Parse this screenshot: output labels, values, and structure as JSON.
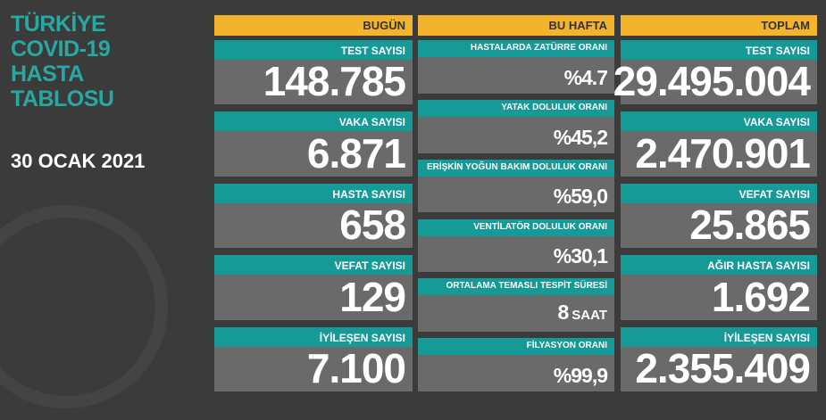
{
  "title": [
    "TÜRKİYE",
    "COVID-19",
    "HASTA",
    "TABLOSU"
  ],
  "date": "30 OCAK 2021",
  "columns": [
    {
      "header": "BUGÜN",
      "items": [
        {
          "label": "TEST SAYISI",
          "value": "148.785"
        },
        {
          "label": "VAKA SAYISI",
          "value": "6.871"
        },
        {
          "label": "HASTA SAYISI",
          "value": "658"
        },
        {
          "label": "VEFAT SAYISI",
          "value": "129"
        },
        {
          "label": "İYİLEŞEN SAYISI",
          "value": "7.100"
        }
      ]
    },
    {
      "header": "BU HAFTA",
      "items": [
        {
          "label": "HASTALARDA ZATÜRRE ORANI",
          "value": "%4.7"
        },
        {
          "label": "YATAK DOLULUK ORANI",
          "value": "%45,2"
        },
        {
          "label": "ERİŞKİN YOĞUN BAKIM DOLULUK ORANI",
          "value": "%59,0"
        },
        {
          "label": "VENTİLATÖR DOLULUK ORANI",
          "value": "%30,1"
        },
        {
          "label": "ORTALAMA TEMASLI TESPİT SÜRESİ",
          "value": "8",
          "unit": "SAAT"
        },
        {
          "label": "FİLYASYON ORANI",
          "value": "%99,9"
        }
      ]
    },
    {
      "header": "TOPLAM",
      "items": [
        {
          "label": "TEST SAYISI",
          "value": "29.495.004"
        },
        {
          "label": "VAKA SAYISI",
          "value": "2.470.901"
        },
        {
          "label": "VEFAT SAYISI",
          "value": "25.865"
        },
        {
          "label": "AĞIR HASTA SAYISI",
          "value": "1.692"
        },
        {
          "label": "İYİLEŞEN SAYISI",
          "value": "2.355.409"
        }
      ]
    }
  ]
}
